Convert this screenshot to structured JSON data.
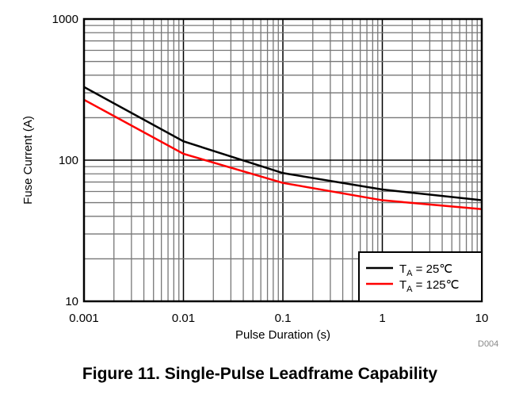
{
  "chart_data": {
    "type": "line",
    "title": "Figure 11.  Single-Pulse Leadframe Capability",
    "xlabel": "Pulse Duration (s)",
    "ylabel": "Fuse Current (A)",
    "xscale": "log",
    "yscale": "log",
    "xlim": [
      0.001,
      10
    ],
    "ylim": [
      10,
      1000
    ],
    "x_ticks": [
      "0.001",
      "0.01",
      "0.1",
      "1",
      "10"
    ],
    "y_ticks": [
      "10",
      "100",
      "1000"
    ],
    "grid": true,
    "legend_position": "bottom-right",
    "series": [
      {
        "name": "TA = 25℃",
        "label_main": "T",
        "label_sub": "A",
        "label_rest": " = 25℃",
        "color": "#000000",
        "x": [
          0.001,
          0.01,
          0.1,
          1,
          10
        ],
        "y": [
          330,
          136,
          81,
          62,
          52
        ]
      },
      {
        "name": "TA = 125℃",
        "label_main": "T",
        "label_sub": "A",
        "label_rest": " = 125℃",
        "color": "#ff0000",
        "x": [
          0.001,
          0.01,
          0.1,
          1,
          10
        ],
        "y": [
          268,
          111,
          69,
          52,
          45
        ]
      }
    ],
    "figure_code": "D004"
  }
}
